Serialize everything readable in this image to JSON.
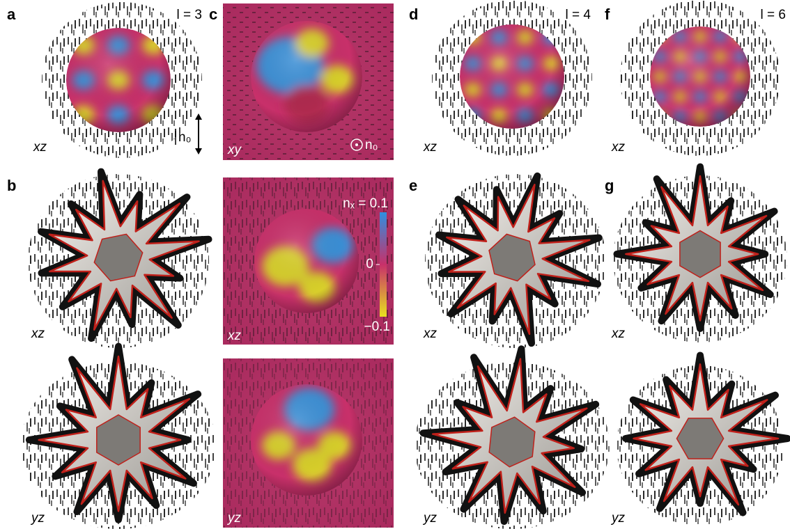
{
  "panels": [
    {
      "letter": "a",
      "tag": "l = 3",
      "views": [
        "xz"
      ]
    },
    {
      "letter": "b",
      "views": [
        "xz",
        "yz"
      ]
    },
    {
      "letter": "c",
      "views": [
        "xy",
        "xz",
        "yz"
      ]
    },
    {
      "letter": "d",
      "tag": "l = 4",
      "views": [
        "xz"
      ]
    },
    {
      "letter": "e",
      "views": [
        "xz",
        "yz"
      ]
    },
    {
      "letter": "f",
      "tag": "l = 6",
      "views": [
        "xz"
      ]
    },
    {
      "letter": "g",
      "views": [
        "xz",
        "yz"
      ]
    }
  ],
  "director": {
    "side_label": "n₀",
    "normal_label": "n₀"
  },
  "colorbar": {
    "top": "nₓ = 0.1",
    "mid": "0",
    "bottom": "−0.1"
  }
}
